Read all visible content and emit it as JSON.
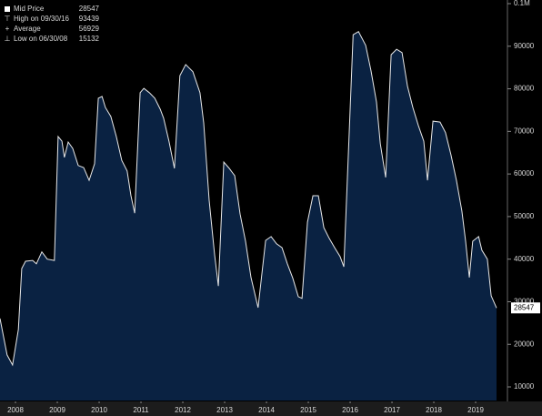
{
  "chart_data": {
    "type": "area",
    "legend": [
      {
        "label": "Mid Price",
        "value": 28547
      },
      {
        "label": "High on 09/30/16",
        "value": 93439
      },
      {
        "label": "Average",
        "value": 56929
      },
      {
        "label": "Low on 06/30/08",
        "value": 15132
      }
    ],
    "last_value": 28547,
    "x": [
      2008.13,
      2008.3,
      2008.43,
      2008.57,
      2008.65,
      2008.74,
      2008.91,
      2009.0,
      2009.13,
      2009.26,
      2009.43,
      2009.52,
      2009.61,
      2009.67,
      2009.76,
      2009.87,
      2010.0,
      2010.13,
      2010.26,
      2010.39,
      2010.48,
      2010.57,
      2010.65,
      2010.78,
      2010.91,
      2011.04,
      2011.17,
      2011.26,
      2011.35,
      2011.48,
      2011.57,
      2011.7,
      2011.83,
      2011.96,
      2012.04,
      2012.17,
      2012.3,
      2012.43,
      2012.57,
      2012.74,
      2012.91,
      2013.0,
      2013.13,
      2013.26,
      2013.35,
      2013.48,
      2013.61,
      2013.74,
      2013.87,
      2014.0,
      2014.13,
      2014.3,
      2014.48,
      2014.61,
      2014.74,
      2014.87,
      2015.0,
      2015.13,
      2015.26,
      2015.35,
      2015.48,
      2015.61,
      2015.74,
      2015.87,
      2016.0,
      2016.13,
      2016.26,
      2016.35,
      2016.57,
      2016.7,
      2016.87,
      2017.0,
      2017.13,
      2017.22,
      2017.35,
      2017.48,
      2017.61,
      2017.74,
      2017.87,
      2018.0,
      2018.13,
      2018.26,
      2018.35,
      2018.48,
      2018.65,
      2018.78,
      2018.91,
      2019.04,
      2019.17,
      2019.26,
      2019.35,
      2019.43,
      2019.57,
      2019.65,
      2019.78,
      2019.87,
      2020.0
    ],
    "series": [
      {
        "name": "Mid Price",
        "color": "#e8e8e8",
        "fill": "#0a2242",
        "values": [
          26060,
          17500,
          15132,
          23500,
          37800,
          39500,
          39700,
          38900,
          41700,
          40000,
          39700,
          68800,
          67700,
          63900,
          67500,
          66000,
          62000,
          61500,
          58500,
          62400,
          77800,
          78200,
          75600,
          73500,
          68800,
          63200,
          60700,
          54900,
          50800,
          79100,
          80100,
          79100,
          77800,
          75200,
          73100,
          67700,
          61300,
          83100,
          85700,
          84000,
          79100,
          72000,
          53800,
          41000,
          33700,
          62800,
          61300,
          59600,
          50600,
          44200,
          35700,
          28600,
          44400,
          45300,
          43600,
          42700,
          38900,
          35500,
          31200,
          30800,
          48700,
          54900,
          54900,
          47400,
          44900,
          42700,
          40600,
          38200,
          92700,
          93439,
          90200,
          84200,
          76900,
          67100,
          59200,
          88000,
          89300,
          88500,
          80600,
          75600,
          71400,
          67700,
          58500,
          72400,
          72200,
          69700,
          64500,
          58500,
          51300,
          44200,
          35700,
          44200,
          45300,
          42100,
          40000,
          31400,
          28547
        ]
      }
    ],
    "xlim": [
      2008.13,
      2020.26
    ],
    "xticks": [
      {
        "value": 2008.5,
        "label": "2008"
      },
      {
        "value": 2009.5,
        "label": "2009"
      },
      {
        "value": 2010.5,
        "label": "2010"
      },
      {
        "value": 2011.5,
        "label": "2011"
      },
      {
        "value": 2012.5,
        "label": "2012"
      },
      {
        "value": 2013.5,
        "label": "2013"
      },
      {
        "value": 2014.5,
        "label": "2014"
      },
      {
        "value": 2015.5,
        "label": "2015"
      },
      {
        "value": 2016.5,
        "label": "2016"
      },
      {
        "value": 2017.5,
        "label": "2017"
      },
      {
        "value": 2018.5,
        "label": "2018"
      },
      {
        "value": 2019.5,
        "label": "2019"
      }
    ],
    "ylim": [
      6800,
      100000
    ],
    "yticks": [
      10000,
      20000,
      30000,
      40000,
      50000,
      60000,
      70000,
      80000,
      90000,
      {
        "value": 100000,
        "label": "0.1M"
      }
    ]
  }
}
